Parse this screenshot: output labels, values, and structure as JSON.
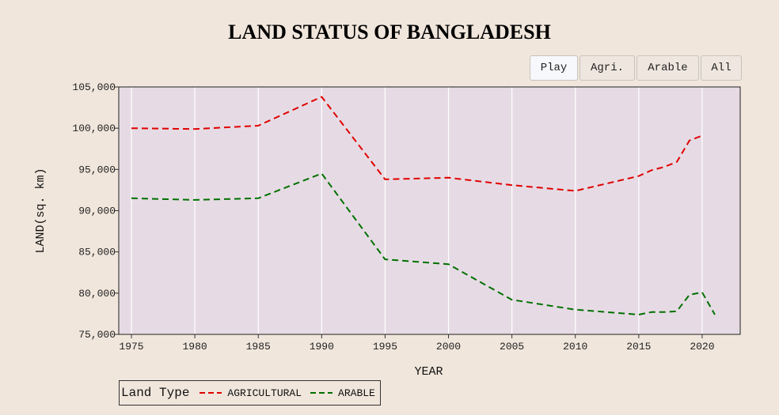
{
  "chart_data": {
    "type": "line",
    "title": "LAND STATUS OF BANGLADESH",
    "xlabel": "YEAR",
    "ylabel": "LAND(sq. km)",
    "xlim": [
      1974,
      2023
    ],
    "ylim": [
      75000,
      105000
    ],
    "xticks": [
      1975,
      1980,
      1985,
      1990,
      1995,
      2000,
      2005,
      2010,
      2015,
      2020
    ],
    "yticks": [
      75000,
      80000,
      85000,
      90000,
      95000,
      100000,
      105000
    ],
    "ytick_labels": [
      "75,000",
      "80,000",
      "85,000",
      "90,000",
      "95,000",
      "100,000",
      "105,000"
    ],
    "grid": "vertical",
    "legend_title": "Land Type",
    "legend_position": "bottom-left",
    "series": [
      {
        "name": "AGRICULTURAL",
        "color": "#e00000",
        "x": [
          1975,
          1980,
          1985,
          1990,
          1995,
          2000,
          2005,
          2010,
          2015,
          2016,
          2017,
          2018,
          2019,
          2020
        ],
        "y": [
          100000,
          99900,
          100300,
          103800,
          93800,
          94000,
          93100,
          92400,
          94200,
          94900,
          95300,
          95900,
          98500,
          99100
        ]
      },
      {
        "name": "ARABLE",
        "color": "#007000",
        "x": [
          1975,
          1980,
          1985,
          1990,
          1995,
          2000,
          2005,
          2010,
          2015,
          2016,
          2017,
          2018,
          2019,
          2020,
          2021
        ],
        "y": [
          91500,
          91300,
          91500,
          94500,
          84100,
          83500,
          79200,
          78000,
          77400,
          77700,
          77700,
          77800,
          79800,
          80100,
          77400
        ]
      }
    ]
  },
  "controls": {
    "play": "Play",
    "agri": "Agri.",
    "arable": "Arable",
    "all": "All"
  },
  "colors": {
    "background": "#f0e6dc",
    "plot_background": "#e6dbe4",
    "gridline": "#ffffff"
  }
}
